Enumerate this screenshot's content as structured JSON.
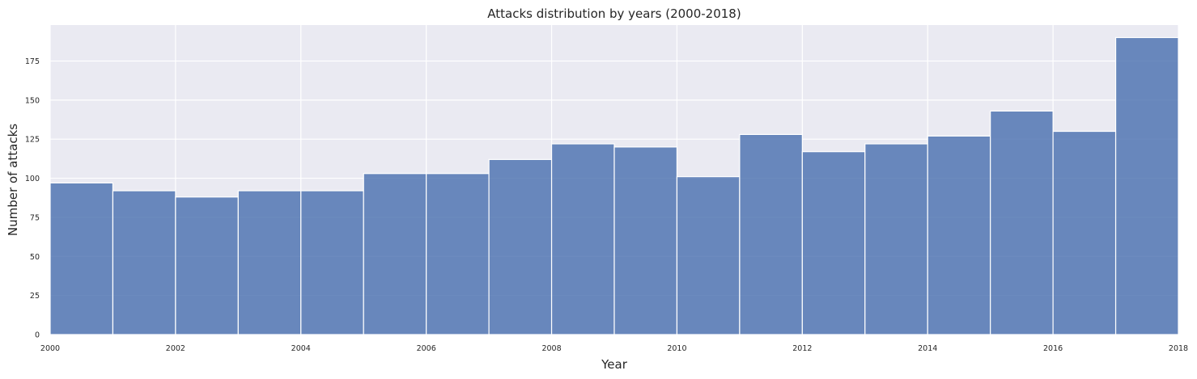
{
  "chart_data": {
    "type": "bar",
    "title": "Attacks distribution by years (2000-2018)",
    "xlabel": "Year",
    "ylabel": "Number of attacks",
    "xlim": [
      2000,
      2018
    ],
    "ylim": [
      0,
      198
    ],
    "grid": true,
    "x_ticks": [
      2000,
      2002,
      2004,
      2006,
      2008,
      2010,
      2012,
      2014,
      2016,
      2018
    ],
    "y_ticks": [
      0,
      25,
      50,
      75,
      100,
      125,
      150,
      175
    ],
    "bins": [
      {
        "start": 2000,
        "end": 2001,
        "value": 97
      },
      {
        "start": 2001,
        "end": 2002,
        "value": 92
      },
      {
        "start": 2002,
        "end": 2003,
        "value": 88
      },
      {
        "start": 2003,
        "end": 2004,
        "value": 92
      },
      {
        "start": 2004,
        "end": 2005,
        "value": 92
      },
      {
        "start": 2005,
        "end": 2006,
        "value": 103
      },
      {
        "start": 2006,
        "end": 2007,
        "value": 103
      },
      {
        "start": 2007,
        "end": 2008,
        "value": 112
      },
      {
        "start": 2008,
        "end": 2009,
        "value": 122
      },
      {
        "start": 2009,
        "end": 2010,
        "value": 120
      },
      {
        "start": 2010,
        "end": 2011,
        "value": 101
      },
      {
        "start": 2011,
        "end": 2012,
        "value": 128
      },
      {
        "start": 2012,
        "end": 2013,
        "value": 117
      },
      {
        "start": 2013,
        "end": 2014,
        "value": 122
      },
      {
        "start": 2014,
        "end": 2015,
        "value": 127
      },
      {
        "start": 2015,
        "end": 2016,
        "value": 143
      },
      {
        "start": 2016,
        "end": 2017,
        "value": 130
      },
      {
        "start": 2017,
        "end": 2018,
        "value": 190
      }
    ],
    "colors": {
      "bar": "#4c72b0",
      "background": "#eaeaf2",
      "grid": "#ffffff"
    }
  }
}
